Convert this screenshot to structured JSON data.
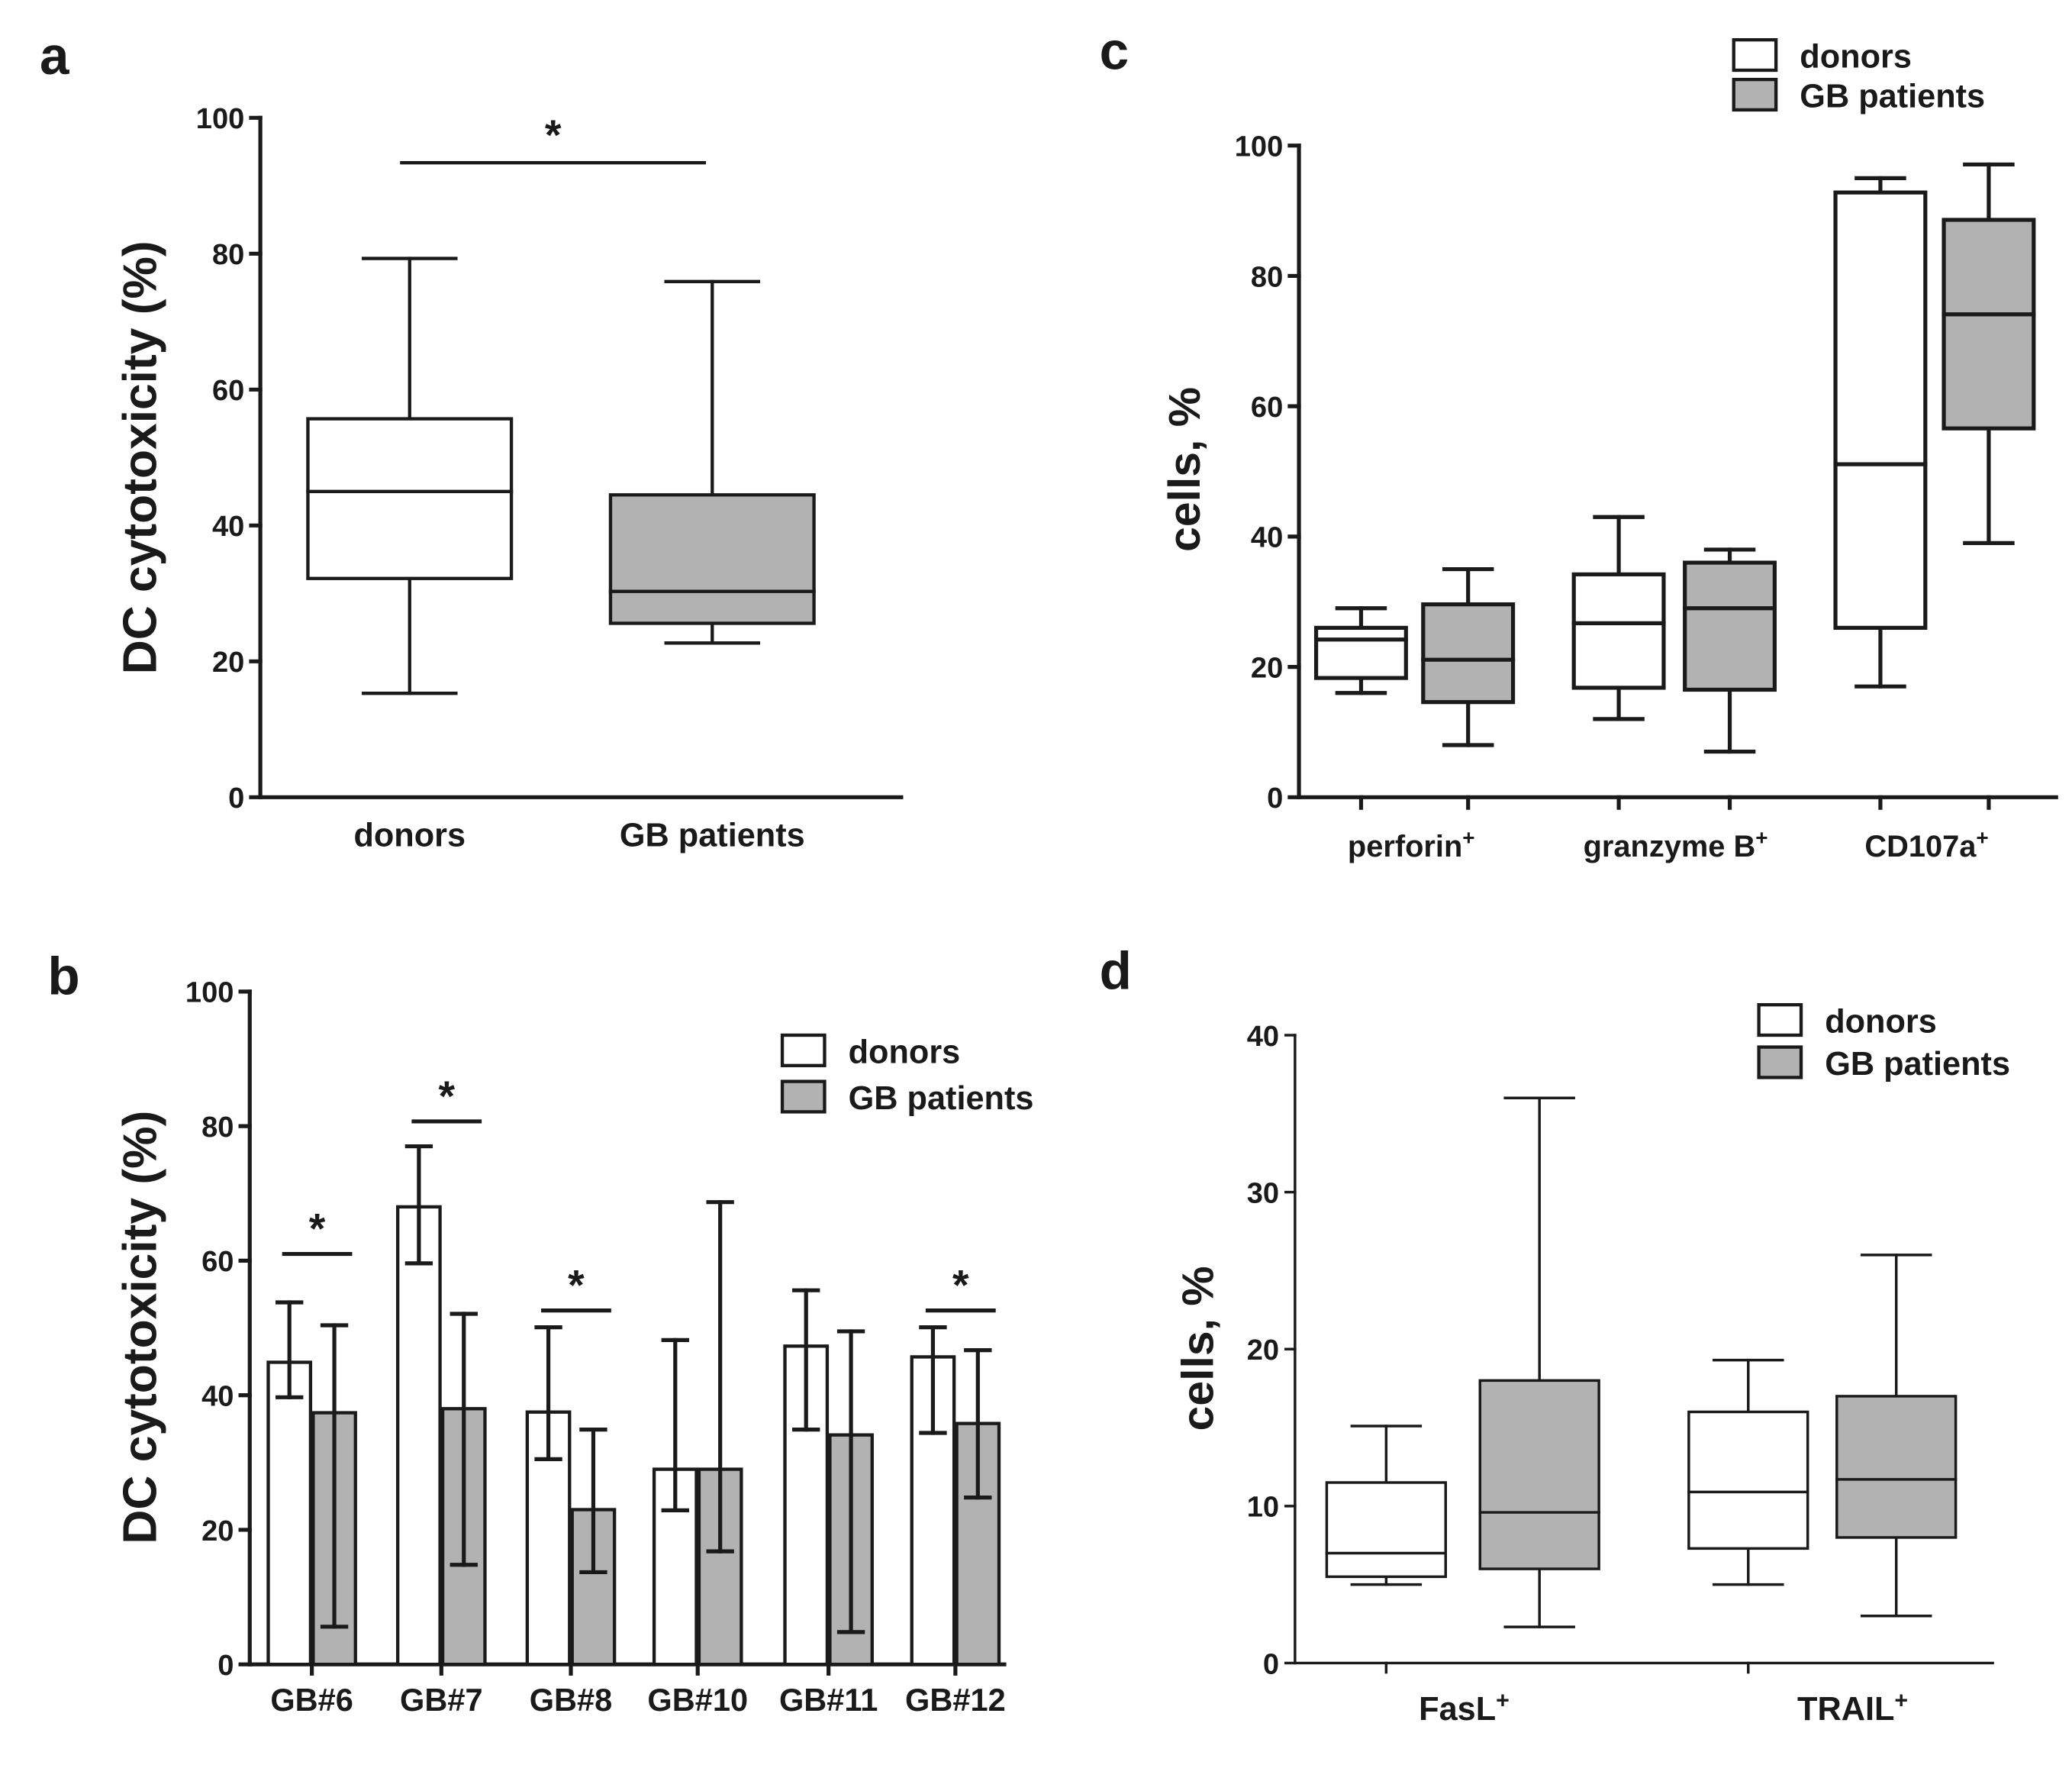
{
  "colors": {
    "donors": "#ffffff",
    "patients": "#b2b2b2",
    "stroke": "#1a1a1a"
  },
  "chart_data": [
    {
      "panel": "a",
      "type": "box",
      "ylabel": "DC cytotoxicity (%)",
      "ylim": [
        0,
        100
      ],
      "yticks": [
        "0",
        "20",
        "40",
        "60",
        "80",
        "100"
      ],
      "categories": [
        "donors",
        "GB patients"
      ],
      "boxes": [
        {
          "series": "donors",
          "min": 15.3,
          "q1": 32.2,
          "median": 45.0,
          "q3": 55.7,
          "max": 79.3
        },
        {
          "series": "GB patients",
          "min": 22.7,
          "q1": 25.6,
          "median": 30.3,
          "q3": 44.5,
          "max": 75.9
        }
      ],
      "significance": [
        {
          "from": 0,
          "to": 1,
          "y": 93,
          "label": "*"
        }
      ]
    },
    {
      "panel": "b",
      "type": "bar",
      "ylabel": "DC cytotoxicity (%)",
      "ylim": [
        0,
        100
      ],
      "yticks": [
        "0",
        "20",
        "40",
        "60",
        "80",
        "100"
      ],
      "categories": [
        "GB#6",
        "GB#7",
        "GB#8",
        "GB#10",
        "GB#11",
        "GB#12"
      ],
      "legend": [
        "donors",
        "GB patients"
      ],
      "series": [
        {
          "name": "donors",
          "values": [
            44.9,
            68.0,
            37.5,
            29.0,
            47.3,
            45.7
          ],
          "err_low": [
            39.7,
            59.6,
            30.5,
            22.9,
            34.9,
            34.4
          ],
          "err_high": [
            53.8,
            77.0,
            50.1,
            48.2,
            55.6,
            50.1
          ]
        },
        {
          "name": "GB patients",
          "values": [
            37.4,
            38.0,
            23.0,
            29.0,
            34.1,
            35.8
          ],
          "err_low": [
            5.6,
            14.8,
            13.7,
            16.8,
            4.8,
            24.8
          ],
          "err_high": [
            50.4,
            52.1,
            34.9,
            68.7,
            49.5,
            46.7
          ]
        }
      ],
      "significance": [
        {
          "group": 0,
          "y": 61.0,
          "label": "*"
        },
        {
          "group": 1,
          "y": 80.7,
          "label": "*"
        },
        {
          "group": 2,
          "y": 52.6,
          "label": "*"
        },
        {
          "group": 5,
          "y": 52.6,
          "label": "*"
        }
      ]
    },
    {
      "panel": "c",
      "type": "box",
      "ylabel": "cells, %",
      "ylim": [
        0,
        100
      ],
      "yticks": [
        "0",
        "20",
        "40",
        "60",
        "80",
        "100"
      ],
      "categories": [
        {
          "base": "perforin",
          "sup": "+"
        },
        {
          "base": "granzyme B",
          "sup": "+"
        },
        {
          "base": "CD107a",
          "sup": "+"
        }
      ],
      "legend": [
        "donors",
        "GB patients"
      ],
      "boxes": [
        {
          "group": 0,
          "series": "donors",
          "min": 16.0,
          "q1": 18.3,
          "median": 24.2,
          "q3": 26.0,
          "max": 29.0
        },
        {
          "group": 0,
          "series": "GB patients",
          "min": 8.0,
          "q1": 14.6,
          "median": 21.1,
          "q3": 29.6,
          "max": 35.0
        },
        {
          "group": 1,
          "series": "donors",
          "min": 12.0,
          "q1": 16.8,
          "median": 26.7,
          "q3": 34.2,
          "max": 43.0
        },
        {
          "group": 1,
          "series": "GB patients",
          "min": 7.0,
          "q1": 16.5,
          "median": 29.0,
          "q3": 36.0,
          "max": 38.0
        },
        {
          "group": 2,
          "series": "donors",
          "min": 17.0,
          "q1": 26.0,
          "median": 51.1,
          "q3": 92.8,
          "max": 95.0
        },
        {
          "group": 2,
          "series": "GB patients",
          "min": 39.0,
          "q1": 56.6,
          "median": 74.1,
          "q3": 88.6,
          "max": 97.1
        }
      ]
    },
    {
      "panel": "d",
      "type": "box",
      "ylabel": "cells, %",
      "ylim": [
        0,
        40
      ],
      "yticks": [
        "0",
        "10",
        "20",
        "30",
        "40"
      ],
      "categories": [
        {
          "base": "FasL",
          "sup": "+"
        },
        {
          "base": "TRAIL",
          "sup": "+"
        }
      ],
      "legend": [
        "donors",
        "GB patients"
      ],
      "boxes": [
        {
          "group": 0,
          "series": "donors",
          "min": 5.0,
          "q1": 5.5,
          "median": 7.0,
          "q3": 11.5,
          "max": 15.1
        },
        {
          "group": 0,
          "series": "GB patients",
          "min": 2.3,
          "q1": 6.0,
          "median": 9.6,
          "q3": 18.0,
          "max": 36.0
        },
        {
          "group": 1,
          "series": "donors",
          "min": 5.0,
          "q1": 7.3,
          "median": 10.9,
          "q3": 16.0,
          "max": 19.3
        },
        {
          "group": 1,
          "series": "GB patients",
          "min": 3.0,
          "q1": 8.0,
          "median": 11.7,
          "q3": 17.0,
          "max": 26.0
        }
      ]
    }
  ]
}
